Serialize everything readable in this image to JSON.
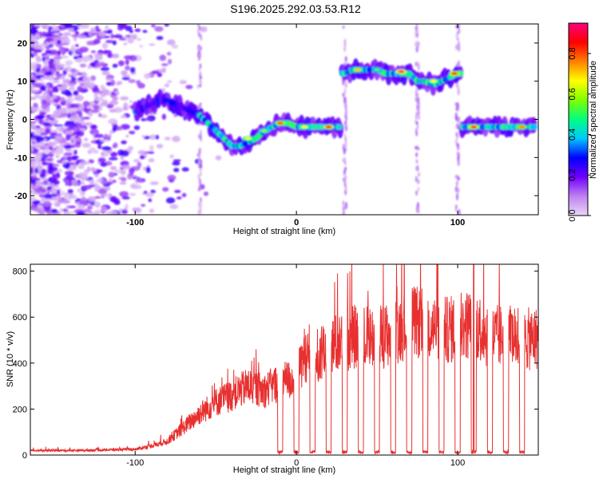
{
  "title": "S196.2025.292.03.53.R12",
  "chart_data": [
    {
      "type": "heatmap",
      "name": "spectrogram",
      "xlabel": "Height of straight line (km)",
      "ylabel": "Frequency (Hz)",
      "xlim": [
        -165,
        150
      ],
      "ylim": [
        -25,
        25
      ],
      "xticks": [
        -100,
        0,
        100
      ],
      "yticks": [
        -20,
        -10,
        0,
        10,
        20
      ],
      "colorbar": {
        "label": "Normalized spectral amplitude",
        "range": [
          0,
          0.95
        ],
        "ticks": [
          0.0,
          0.2,
          0.4,
          0.6,
          0.8
        ],
        "tick_labels": [
          "0.0",
          "0.2",
          "0.4",
          "0.6",
          "0.8"
        ],
        "colors": [
          "#e8d8f8",
          "#c080f0",
          "#7000ff",
          "#0000ff",
          "#00c8ff",
          "#00ff80",
          "#80ff00",
          "#ffff00",
          "#ff8000",
          "#ff0000",
          "#ff0080"
        ]
      },
      "ridge": {
        "x": [
          -100,
          -95,
          -90,
          -85,
          -80,
          -75,
          -70,
          -65,
          -60,
          -55,
          -50,
          -45,
          -40,
          -35,
          -30,
          -25,
          -20,
          -15,
          -10,
          -5,
          0,
          5,
          10,
          15,
          20,
          25,
          30,
          35,
          40,
          45,
          50,
          55,
          60,
          65,
          70,
          75,
          80,
          85,
          90,
          95,
          100,
          105,
          110,
          115,
          120,
          125,
          130,
          135,
          140,
          145,
          150
        ],
        "y": [
          2,
          3,
          4,
          5,
          5,
          4,
          3,
          2,
          1,
          -1,
          -3,
          -5,
          -7,
          -7,
          -6,
          -5,
          -3,
          -2,
          -1,
          -1,
          -2,
          -2,
          -2,
          -2,
          -2,
          -2,
          12,
          13,
          13,
          13,
          13,
          12,
          12,
          12,
          12,
          10,
          10,
          9,
          10,
          11,
          12,
          -2,
          -2,
          -2,
          -2,
          -2,
          -2,
          -2,
          -2,
          -2,
          -2
        ]
      }
    },
    {
      "type": "line",
      "name": "snr",
      "xlabel": "Height of straight line (km)",
      "ylabel": "SNR (10 * v/v)",
      "xlim": [
        -165,
        150
      ],
      "ylim": [
        0,
        830
      ],
      "xticks": [
        -100,
        0,
        100
      ],
      "yticks": [
        0,
        200,
        400,
        600,
        800
      ],
      "color": "#e83030",
      "envelope": {
        "x": [
          -165,
          -140,
          -120,
          -100,
          -90,
          -80,
          -70,
          -60,
          -50,
          -40,
          -30,
          -20,
          -10,
          0,
          5,
          10,
          15,
          20,
          30,
          40,
          50,
          60,
          70,
          80,
          90,
          100,
          110,
          120,
          130,
          140,
          150
        ],
        "y": [
          20,
          20,
          22,
          25,
          40,
          60,
          120,
          180,
          230,
          260,
          300,
          280,
          320,
          330,
          440,
          400,
          430,
          470,
          500,
          520,
          510,
          530,
          580,
          570,
          540,
          550,
          580,
          510,
          520,
          500,
          510
        ]
      },
      "dropouts_x": [
        -10,
        0,
        10,
        20,
        30,
        40,
        50,
        60,
        70,
        80,
        90,
        100,
        110,
        120,
        130,
        140
      ],
      "spike": {
        "x": 110,
        "y": 830
      }
    }
  ]
}
